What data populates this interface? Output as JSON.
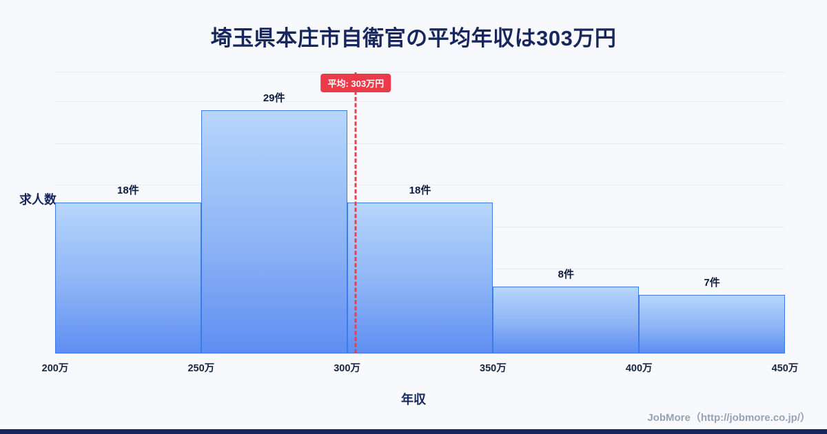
{
  "header": {
    "title": "埼玉県本庄市自衛官の平均年収は303万円"
  },
  "chart_data": {
    "type": "bar",
    "title": "埼玉県本庄市自衛官の平均年収は303万円",
    "xlabel": "年収",
    "ylabel": "求人数",
    "x_tick_labels": [
      "200万",
      "250万",
      "300万",
      "350万",
      "400万",
      "450万"
    ],
    "x_range": [
      200,
      450
    ],
    "bin_width": 50,
    "values": [
      18,
      29,
      18,
      8,
      7
    ],
    "bar_labels": [
      "18件",
      "29件",
      "18件",
      "8件",
      "7件"
    ],
    "ylim": [
      0,
      33.5
    ],
    "gridline_values": [
      5,
      10,
      15,
      20,
      25,
      30
    ],
    "grid": "horizontal",
    "legend": "none",
    "average": {
      "value": 303,
      "label": "平均: 303万円"
    },
    "colors": {
      "background": "#f7f9fd",
      "bar_gradient_top": "#b6d6fb",
      "bar_gradient_bottom": "#5e8ef2",
      "bar_border": "#3d7be8",
      "average_line": "#e8404f",
      "average_badge_bg": "#ea3b4b",
      "title_text": "#17265c",
      "footer_bar": "#17265c",
      "credit_text": "#97a2b3"
    }
  },
  "footer": {
    "credit": "JobMore（http://jobmore.co.jp/）"
  }
}
